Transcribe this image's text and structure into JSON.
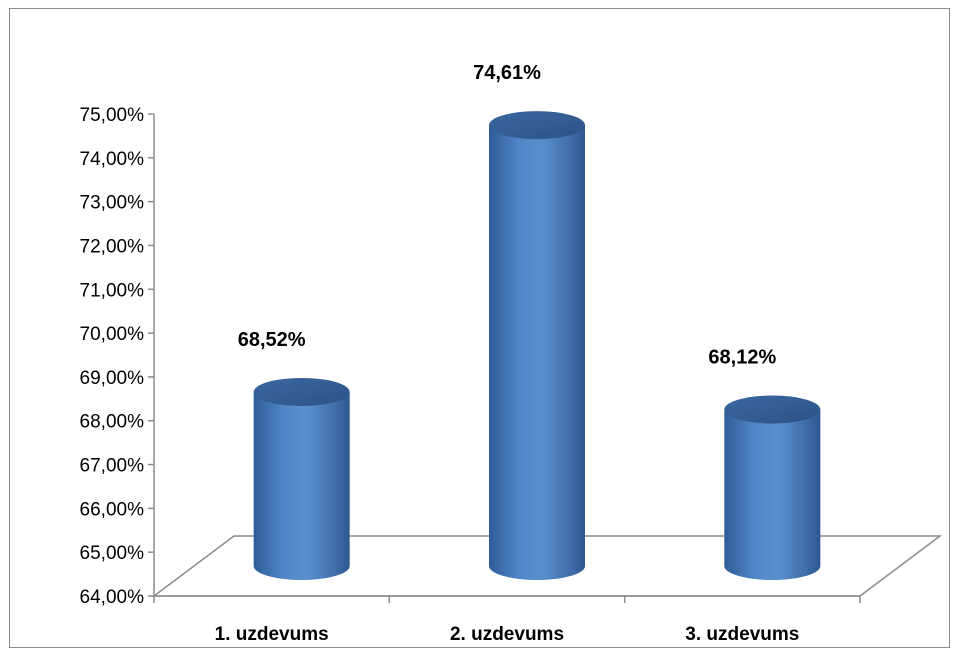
{
  "chart_data": {
    "type": "bar",
    "style": "3d-cylinder",
    "categories": [
      "1. uzdevums",
      "2. uzdevums",
      "3. uzdevums"
    ],
    "values": [
      68.52,
      74.61,
      68.12
    ],
    "data_labels": [
      "68,52%",
      "74,61%",
      "68,12%"
    ],
    "y_tick_labels": [
      "64,00%",
      "65,00%",
      "66,00%",
      "67,00%",
      "68,00%",
      "69,00%",
      "70,00%",
      "71,00%",
      "72,00%",
      "73,00%",
      "74,00%",
      "75,00%"
    ],
    "ylim": [
      64,
      75
    ],
    "grid": false,
    "legend": "none",
    "bar_color": "#4f81bd",
    "title": "",
    "xlabel": "",
    "ylabel": ""
  }
}
